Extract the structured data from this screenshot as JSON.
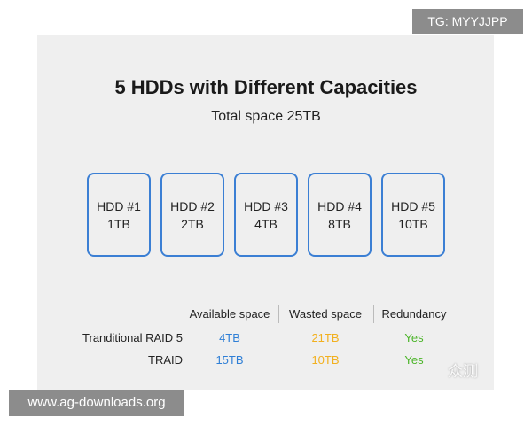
{
  "header": {
    "title": "5 HDDs with Different Capacities",
    "subtitle": "Total space 25TB"
  },
  "hdds": [
    {
      "label": "HDD #1",
      "capacity": "1TB"
    },
    {
      "label": "HDD #2",
      "capacity": "2TB"
    },
    {
      "label": "HDD #3",
      "capacity": "4TB"
    },
    {
      "label": "HDD #4",
      "capacity": "8TB"
    },
    {
      "label": "HDD #5",
      "capacity": "10TB"
    }
  ],
  "table": {
    "headers": [
      "Available space",
      "Wasted space",
      "Redundancy"
    ],
    "rows": [
      {
        "name": "Tranditional RAID 5",
        "cells": [
          "4TB",
          "21TB",
          "Yes"
        ]
      },
      {
        "name": "TRAID",
        "cells": [
          "15TB",
          "10TB",
          "Yes"
        ]
      }
    ]
  },
  "overlays": {
    "tag": "TG: MYYJJPP",
    "site": "www.ag-downloads.org",
    "watermark": "众测"
  }
}
